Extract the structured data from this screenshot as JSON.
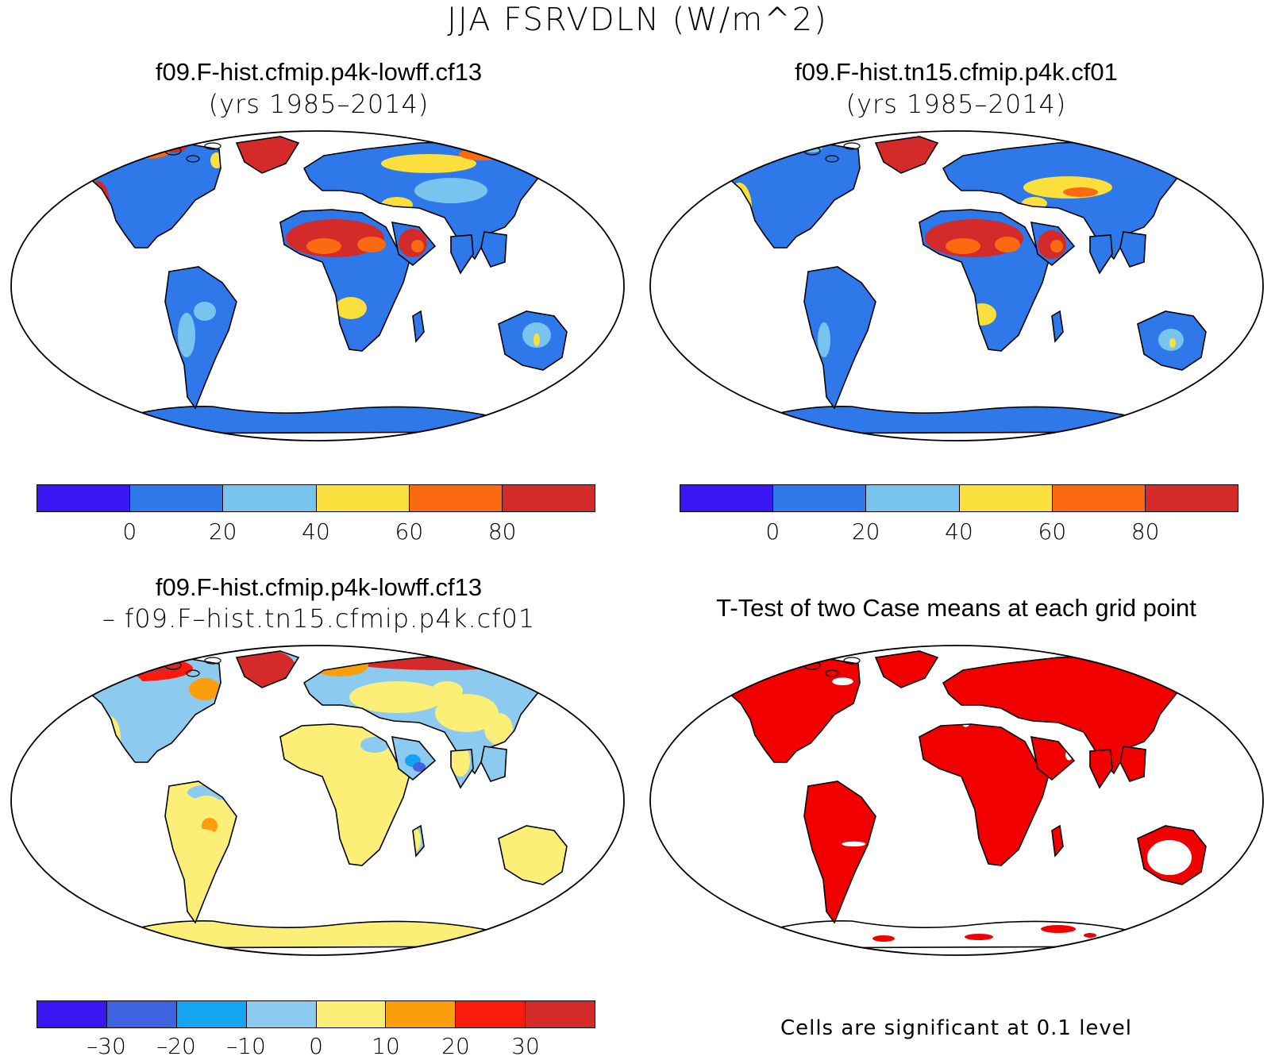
{
  "figure": {
    "title": "JJA FSRVDLN (W/m^2)"
  },
  "colors": {
    "abs": [
      "#3a17f2",
      "#2e78ea",
      "#78c4ee",
      "#fbdf3c",
      "#fb6a10",
      "#d42a2a"
    ],
    "diff": [
      "#3a17f2",
      "#3e63e0",
      "#14a4f2",
      "#8dcaf0",
      "#fbef78",
      "#fb9e0c",
      "#fb1b0c",
      "#d42a2a"
    ],
    "sig": "#f20000",
    "land_outline": "#000000"
  },
  "panels": {
    "top_left": {
      "title": "f09.F-hist.cfmip.p4k-lowff.cf13",
      "subtitle": "(yrs 1985–2014)",
      "colorbar_labels": [
        "0",
        "20",
        "40",
        "60",
        "80"
      ]
    },
    "top_right": {
      "title": "f09.F-hist.tn15.cfmip.p4k.cf01",
      "subtitle": "(yrs 1985–2014)",
      "colorbar_labels": [
        "0",
        "20",
        "40",
        "60",
        "80"
      ]
    },
    "bottom_left": {
      "title": "f09.F-hist.cfmip.p4k-lowff.cf13",
      "subtitle": "– f09.F–hist.tn15.cfmip.p4k.cf01",
      "colorbar_labels": [
        "–30",
        "–20",
        "–10",
        "0",
        "10",
        "20",
        "30"
      ]
    },
    "bottom_right": {
      "title": "T-Test of two Case means at each grid point",
      "note": "Cells are significant at 0.1 level"
    }
  }
}
